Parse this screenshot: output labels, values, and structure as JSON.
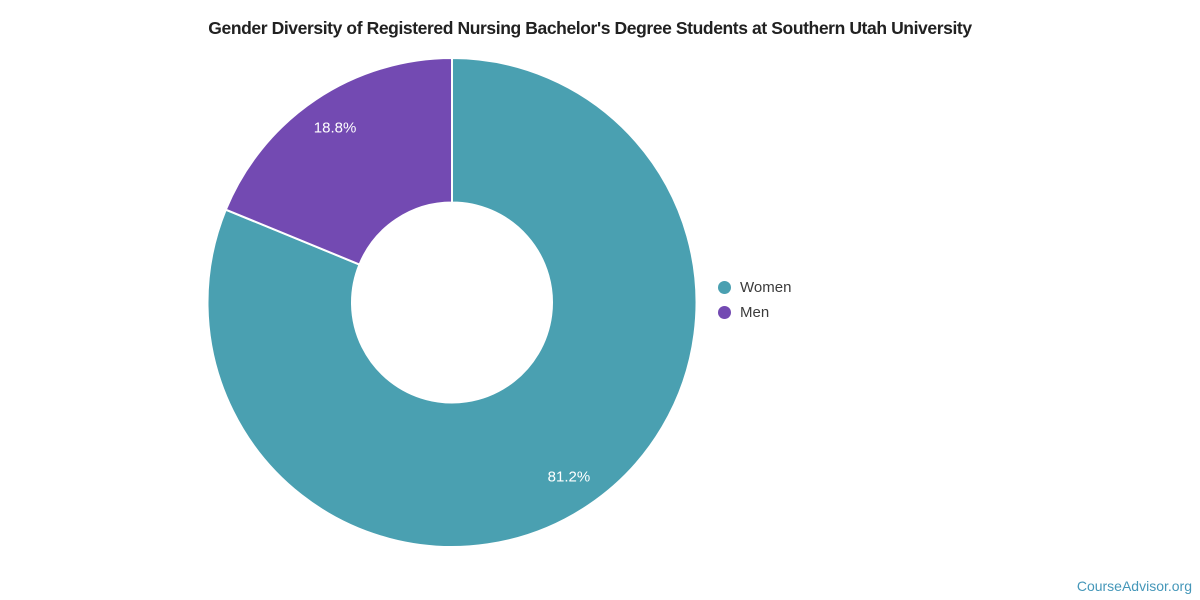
{
  "page": {
    "attribution": "CourseAdvisor.org"
  },
  "colors": {
    "background": "#ffffff",
    "title_text": "#212121",
    "legend_text": "#3b3b3b",
    "slice_label_text": "#ffffff",
    "slice_stroke": "#ffffff",
    "attribution_text": "#4597b9",
    "women_teal": "#4aa0b1",
    "men_purple": "#734ab2"
  },
  "chart_data": {
    "type": "pie",
    "subtype": "donut",
    "title": "Gender Diversity of Registered Nursing Bachelor's Degree Students at Southern Utah University",
    "legend_position": "right",
    "start_angle_deg": 0,
    "direction": "clockwise",
    "total": 100,
    "segments": [
      {
        "label": "Women",
        "value": 81.2,
        "percent_label": "81.2%",
        "color": "#4aa0b1"
      },
      {
        "label": "Men",
        "value": 18.8,
        "percent_label": "18.8%",
        "color": "#734ab2"
      }
    ]
  }
}
